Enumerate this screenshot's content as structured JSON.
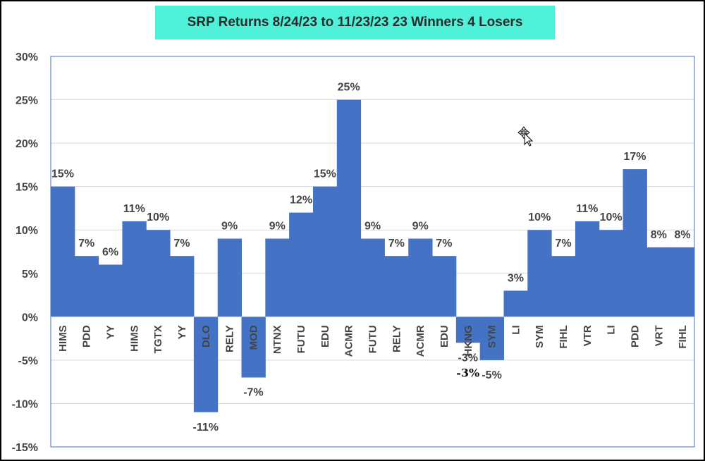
{
  "chart_data": {
    "type": "bar",
    "title": "SRP Returns 8/24/23 to 11/23/23 23 Winners 4 Losers",
    "xlabel": "",
    "ylabel": "",
    "ylim": [
      -15,
      30
    ],
    "yticks": [
      "30%",
      "25%",
      "20%",
      "15%",
      "10%",
      "5%",
      "0%",
      "-5%",
      "-10%",
      "-15%"
    ],
    "ytick_values": [
      30,
      25,
      20,
      15,
      10,
      5,
      0,
      -5,
      -10,
      -15
    ],
    "grid": true,
    "bar_color": "#4472c4",
    "categories": [
      "HIMS",
      "PDD",
      "YY",
      "HIMS",
      "TGTX",
      "YY",
      "DLO",
      "RELY",
      "MOD",
      "NTNX",
      "FUTU",
      "EDU",
      "ACMR",
      "FUTU",
      "RELY",
      "ACMR",
      "EDU",
      "HKNG",
      "SYM",
      "LI",
      "SYM",
      "FIHL",
      "VTR",
      "LI",
      "PDD",
      "VRT",
      "FIHL"
    ],
    "values": [
      15,
      7,
      6,
      11,
      10,
      7,
      -11,
      9,
      -7,
      9,
      12,
      15,
      25,
      9,
      7,
      9,
      7,
      -3,
      -5,
      3,
      10,
      7,
      11,
      10,
      17,
      8,
      8
    ],
    "data_labels": [
      "15%",
      "7%",
      "6%",
      "11%",
      "10%",
      "7%",
      "-11%",
      "9%",
      "-7%",
      "9%",
      "12%",
      "15%",
      "25%",
      "9%",
      "7%",
      "9%",
      "7%",
      "-3%",
      "-5%",
      "3%",
      "10%",
      "7%",
      "11%",
      "10%",
      "17%",
      "8%",
      "8%"
    ],
    "extra_annotation": "-3%"
  },
  "cursor_icon": "move-cursor-icon"
}
